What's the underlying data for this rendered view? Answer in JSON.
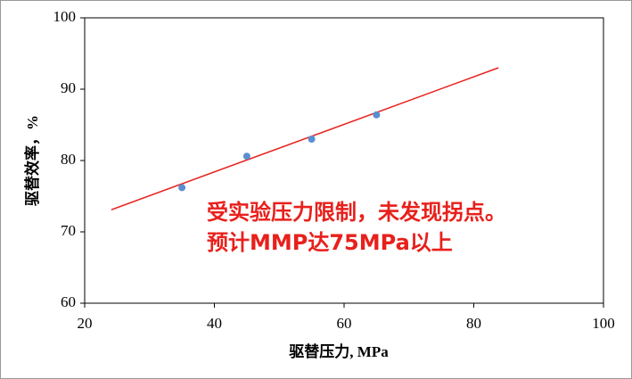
{
  "chart_data": {
    "type": "scatter",
    "x_label": "驱替压力, MPa",
    "y_label": "驱替效率，%",
    "x": [
      35,
      45,
      55,
      65
    ],
    "values": [
      76.2,
      80.6,
      83,
      86.4
    ],
    "color": "#5b8fd0",
    "trendline": {
      "x": [
        24.1,
        83.8
      ],
      "values": [
        73.1,
        93
      ],
      "color": "#e8201c"
    },
    "annotations": [
      "受实验压力限制，未发现拐点。",
      "预计MMP达75MPa以上"
    ],
    "annotation_color": "#e8201c",
    "xlim": [
      20,
      100
    ],
    "xticks": [
      20,
      40,
      60,
      80,
      100
    ],
    "ylim": [
      60,
      100
    ],
    "yticks": [
      60,
      70,
      80,
      90,
      100
    ],
    "grid": false
  }
}
